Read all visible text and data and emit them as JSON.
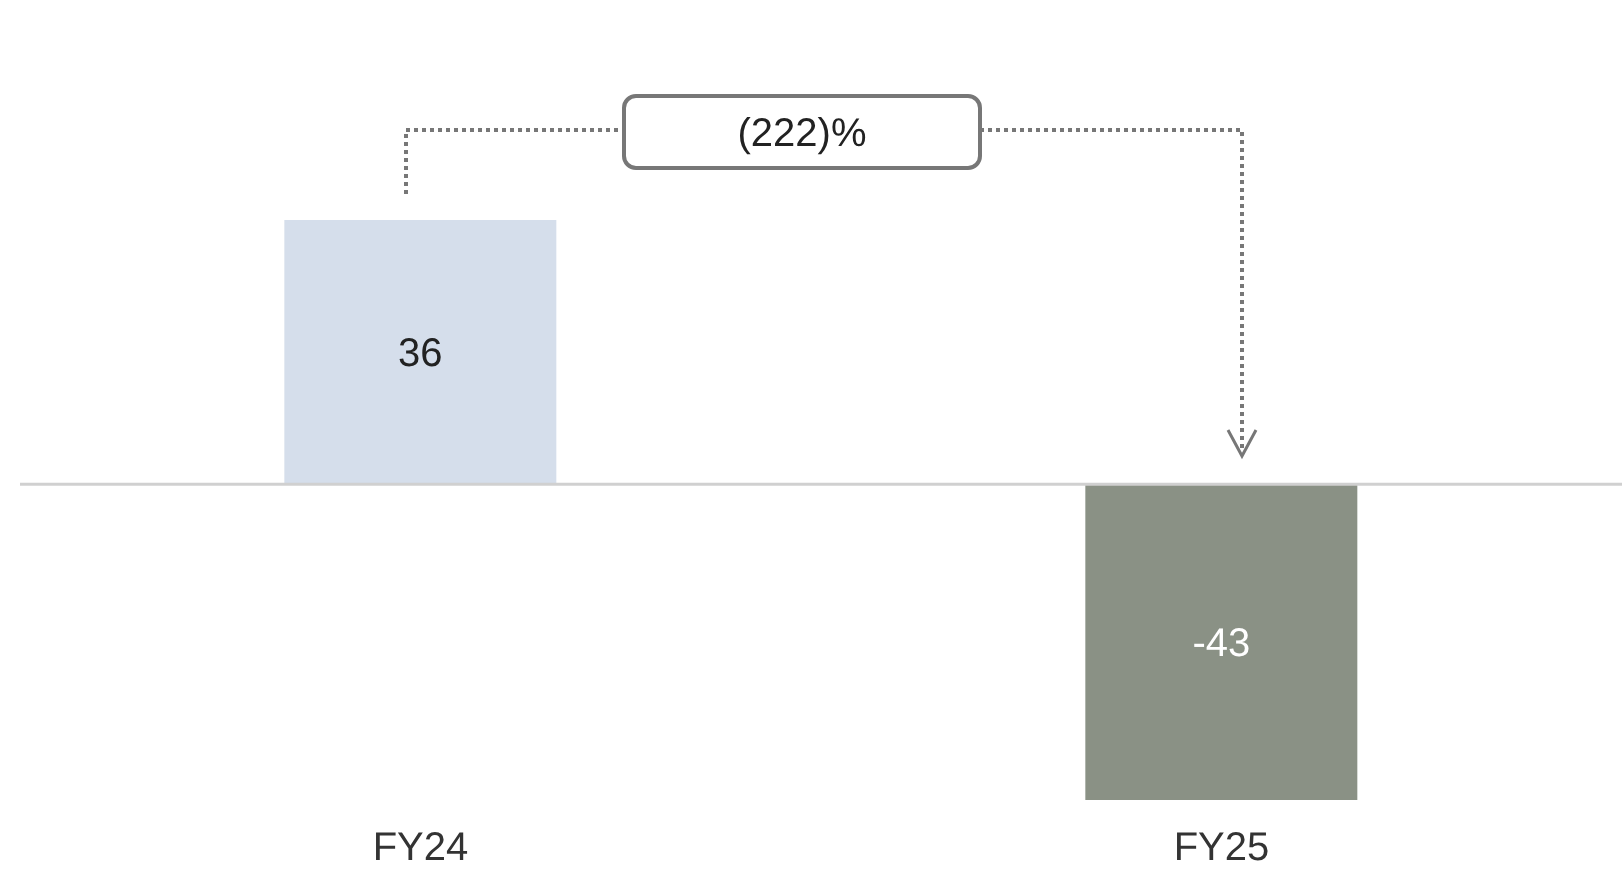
{
  "chart_data": {
    "type": "bar",
    "categories": [
      "FY24",
      "FY25"
    ],
    "values": [
      36,
      -43
    ],
    "colors": [
      "#d5deeb",
      "#8a9185"
    ],
    "data_labels": true,
    "annotations": [
      "(222)%"
    ]
  }
}
